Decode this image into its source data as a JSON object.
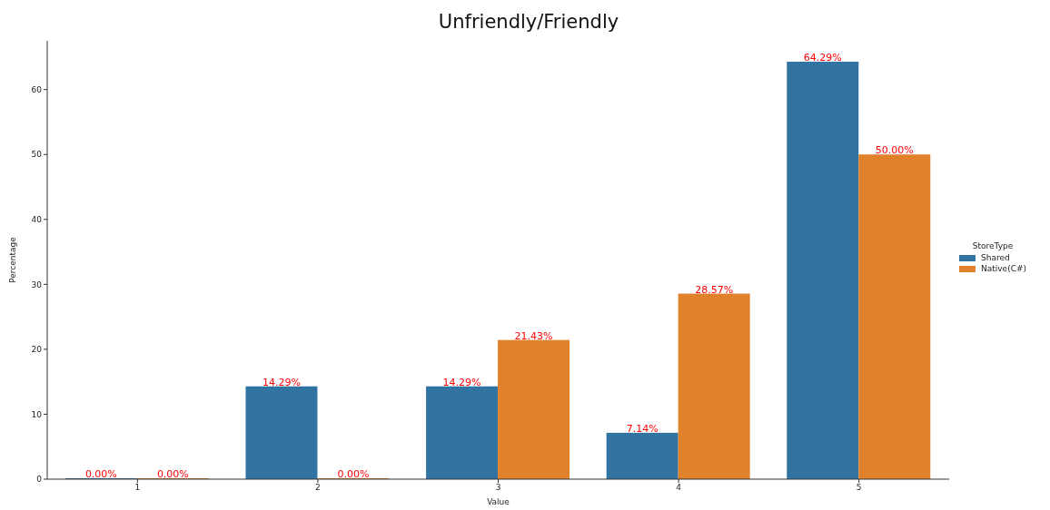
{
  "chart_data": {
    "type": "bar",
    "title": "Unfriendly/Friendly",
    "xlabel": "Value",
    "ylabel": "Percentage",
    "legend_title": "StoreType",
    "categories": [
      "1",
      "2",
      "3",
      "4",
      "5"
    ],
    "series": [
      {
        "name": "Shared",
        "color": "#3274a1",
        "values": [
          0,
          14.29,
          14.29,
          7.14,
          64.29
        ],
        "value_labels": [
          "0.00%",
          "14.29%",
          "14.29%",
          "7.14%",
          "64.29%"
        ]
      },
      {
        "name": "Native(C#)",
        "color": "#e1812c",
        "values": [
          0,
          0,
          21.43,
          28.57,
          50
        ],
        "value_labels": [
          "0.00%",
          "0.00%",
          "21.43%",
          "28.57%",
          "50.00%"
        ]
      }
    ],
    "ylim": [
      0,
      67.5
    ],
    "yticks": [
      0,
      10,
      20,
      30,
      40,
      50,
      60
    ],
    "grid": false,
    "legend": "right"
  }
}
